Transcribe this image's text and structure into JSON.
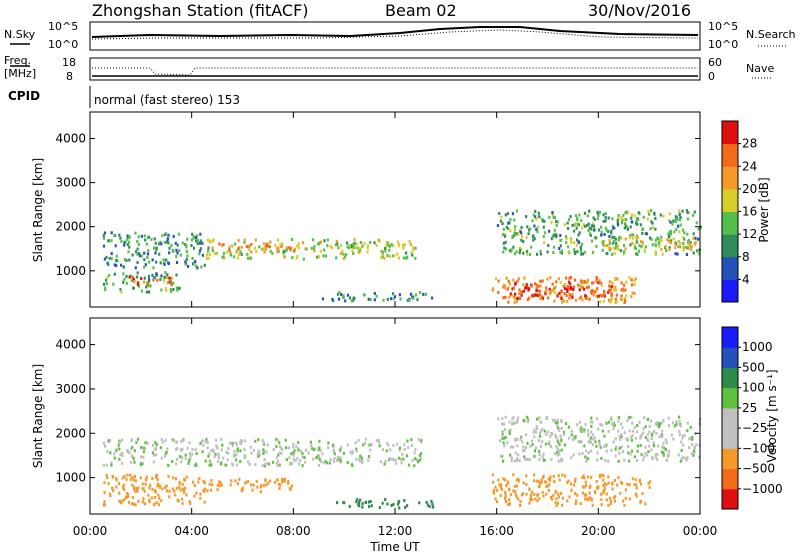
{
  "header": {
    "station": "Zhongshan Station (fitACF)",
    "beam": "Beam 02",
    "date": "30/Nov/2016"
  },
  "mini_panels": {
    "nsky_label": "N.Sky",
    "nsearch_label": "N.Search",
    "freq_label_1": "Freq.",
    "freq_label_2": "[MHz]",
    "nave_label": "Nave",
    "cpid_label": "CPID",
    "cpid_text": "normal (fast stereo) 153",
    "noise_ticks_left": [
      "10^5",
      "10^0"
    ],
    "noise_ticks_right": [
      "10^5",
      "10^0"
    ],
    "freq_ticks": [
      "18",
      "8"
    ],
    "nave_ticks": [
      "60",
      "0"
    ]
  },
  "xaxis": {
    "label": "Time UT",
    "ticks": [
      "00:00",
      "04:00",
      "08:00",
      "12:00",
      "16:00",
      "20:00",
      "00:00"
    ]
  },
  "colors": {
    "power_scale": [
      "#1a1aff",
      "#2452b8",
      "#2f8c5a",
      "#52c04a",
      "#d6cc2a",
      "#f59a2a",
      "#f26a1a",
      "#e01010"
    ],
    "velocity_scale": [
      "#e01010",
      "#f26a1a",
      "#f59a2a",
      "#c0c0c0",
      "#c0c0c0",
      "#60c040",
      "#2e8a4a",
      "#2452b8",
      "#1a1aff"
    ]
  },
  "chart_data": [
    {
      "type": "heatmap",
      "name": "power-panel",
      "ylabel": "Slant Range [km]",
      "yticks": [
        "1000",
        "2000",
        "3000",
        "4000"
      ],
      "ylim": [
        180,
        4600
      ],
      "xlim_hours": [
        0,
        24
      ],
      "colorbar": {
        "label": "Power [dB]",
        "ticks": [
          "4",
          "8",
          "12",
          "16",
          "20",
          "24",
          "28"
        ],
        "range": [
          0,
          31
        ]
      },
      "bands": [
        {
          "t0": 0.5,
          "t1": 4.5,
          "r0": 1100,
          "r1": 1900,
          "value": 10
        },
        {
          "t0": 4.5,
          "t1": 12.8,
          "r0": 1300,
          "r1": 1750,
          "value": 16
        },
        {
          "t0": 5.0,
          "t1": 8.5,
          "r0": 1450,
          "r1": 1650,
          "value": 22
        },
        {
          "t0": 0.5,
          "t1": 3.5,
          "r0": 550,
          "r1": 1000,
          "value": 12
        },
        {
          "t0": 1.5,
          "t1": 3.2,
          "r0": 700,
          "r1": 900,
          "value": 24
        },
        {
          "t0": 9.0,
          "t1": 13.5,
          "r0": 350,
          "r1": 550,
          "value": 10
        },
        {
          "t0": 15.8,
          "t1": 21.5,
          "r0": 300,
          "r1": 900,
          "value": 22
        },
        {
          "t0": 16.5,
          "t1": 20.5,
          "r0": 400,
          "r1": 800,
          "value": 28
        },
        {
          "t0": 16.0,
          "t1": 24.0,
          "r0": 1400,
          "r1": 2400,
          "value": 12
        },
        {
          "t0": 20.0,
          "t1": 24.0,
          "r0": 1500,
          "r1": 1800,
          "value": 18
        }
      ]
    },
    {
      "type": "heatmap",
      "name": "velocity-panel",
      "ylabel": "Slant Range [km]",
      "yticks": [
        "1000",
        "2000",
        "3000",
        "4000"
      ],
      "ylim": [
        180,
        4600
      ],
      "xlim_hours": [
        0,
        24
      ],
      "colorbar": {
        "label": "Velocity [m s⁻¹]",
        "ticks": [
          "1000",
          "500",
          "100",
          "25",
          "−25",
          "−100",
          "−500",
          "−1000"
        ]
      },
      "bands": [
        {
          "t0": 0.5,
          "t1": 13.0,
          "r0": 1300,
          "r1": 1900,
          "value": 0
        },
        {
          "t0": 0.5,
          "t1": 4.5,
          "r0": 400,
          "r1": 1100,
          "value": -300
        },
        {
          "t0": 4.5,
          "t1": 8.0,
          "r0": 700,
          "r1": 1000,
          "value": -200
        },
        {
          "t0": 9.5,
          "t1": 13.5,
          "r0": 350,
          "r1": 550,
          "value": 200
        },
        {
          "t0": 15.8,
          "t1": 22.0,
          "r0": 400,
          "r1": 1100,
          "value": -400
        },
        {
          "t0": 16.0,
          "t1": 24.0,
          "r0": 1400,
          "r1": 2400,
          "value": 0
        }
      ]
    }
  ]
}
